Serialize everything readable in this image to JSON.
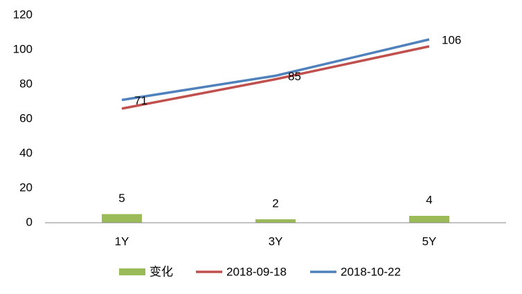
{
  "chart_data": {
    "type": "combo",
    "categories": [
      "1Y",
      "3Y",
      "5Y"
    ],
    "series": [
      {
        "name": "变化",
        "type": "bar",
        "color": "#9bbb59",
        "values": [
          5,
          2,
          4
        ],
        "labels": true
      },
      {
        "name": "2018-09-18",
        "type": "line",
        "color": "#c0504d",
        "values": [
          66,
          83,
          102
        ],
        "labels": false
      },
      {
        "name": "2018-10-22",
        "type": "line",
        "color": "#4f81bd",
        "values": [
          71,
          85,
          106
        ],
        "labels": true
      }
    ],
    "ylim": [
      0,
      120
    ],
    "yticks": [
      0,
      20,
      40,
      60,
      80,
      100,
      120
    ],
    "grid": false,
    "legend": "bottom"
  }
}
